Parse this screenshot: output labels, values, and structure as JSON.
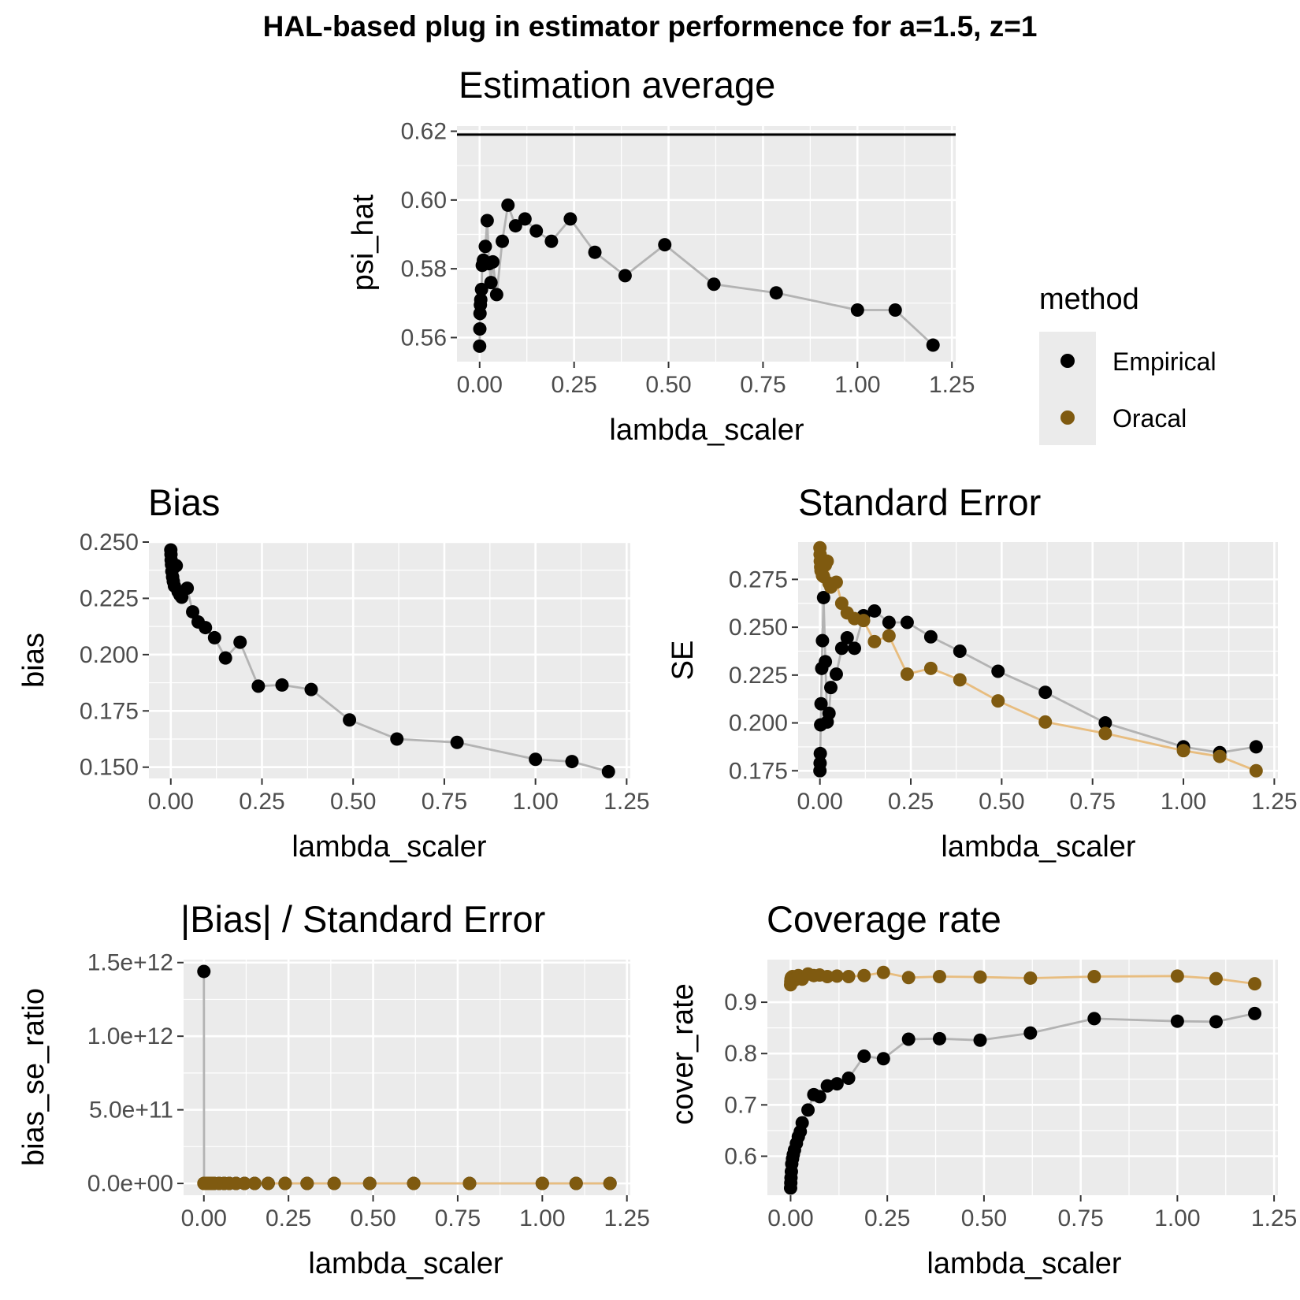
{
  "figure": {
    "title": "HAL-based plug in estimator performence for a=1.5, z=1"
  },
  "legend": {
    "title": "method",
    "items": [
      {
        "label": "Empirical",
        "color": "#000000"
      },
      {
        "label": "Oracal",
        "color": "#7f5a10"
      }
    ]
  },
  "colors": {
    "panel_bg": "#ebebeb",
    "grid": "#ffffff",
    "empirical_point": "#000000",
    "empirical_line": "#b3b3b3",
    "oracal_point": "#7f5a10",
    "oracal_line": "#e8bd7f",
    "reference_line": "#000000"
  },
  "chart_data": [
    {
      "id": "estimation-average",
      "type": "line",
      "title": "Estimation average",
      "xlabel": "lambda_scaler",
      "ylabel": "psi_hat",
      "xlim": [
        -0.06,
        1.26
      ],
      "ylim": [
        0.553,
        0.6215
      ],
      "xticks": [
        0,
        0.25,
        0.5,
        0.75,
        1.0,
        1.25
      ],
      "xtick_labels": [
        "0.00",
        "0.25",
        "0.50",
        "0.75",
        "1.00",
        "1.25"
      ],
      "yticks": [
        0.56,
        0.58,
        0.6,
        0.62
      ],
      "ytick_labels": [
        "0.56",
        "0.58",
        "0.60",
        "0.62"
      ],
      "reference_line": 0.619,
      "series": [
        {
          "name": "Empirical",
          "x": [
            0.0,
            0.0005,
            0.001,
            0.002,
            0.003,
            0.005,
            0.007,
            0.01,
            0.015,
            0.02,
            0.025,
            0.03,
            0.035,
            0.045,
            0.06,
            0.075,
            0.095,
            0.12,
            0.15,
            0.19,
            0.24,
            0.305,
            0.385,
            0.49,
            0.62,
            0.785,
            1.0,
            1.1,
            1.2
          ],
          "y": [
            0.5575,
            0.5625,
            0.567,
            0.5695,
            0.571,
            0.574,
            0.581,
            0.5825,
            0.5865,
            0.594,
            0.5815,
            0.576,
            0.582,
            0.5725,
            0.588,
            0.5985,
            0.5925,
            0.5945,
            0.591,
            0.588,
            0.5945,
            0.5848,
            0.578,
            0.587,
            0.5755,
            0.573,
            0.568,
            0.568,
            0.5578
          ]
        }
      ]
    },
    {
      "id": "bias",
      "type": "line",
      "title": "Bias",
      "xlabel": "lambda_scaler",
      "ylabel": "bias",
      "xlim": [
        -0.06,
        1.26
      ],
      "ylim": [
        0.145,
        0.25
      ],
      "xticks": [
        0,
        0.25,
        0.5,
        0.75,
        1.0,
        1.25
      ],
      "xtick_labels": [
        "0.00",
        "0.25",
        "0.50",
        "0.75",
        "1.00",
        "1.25"
      ],
      "yticks": [
        0.15,
        0.175,
        0.2,
        0.225,
        0.25
      ],
      "ytick_labels": [
        "0.150",
        "0.175",
        "0.200",
        "0.225",
        "0.250"
      ],
      "series": [
        {
          "name": "Empirical",
          "x": [
            0.0,
            0.0005,
            0.001,
            0.002,
            0.003,
            0.005,
            0.007,
            0.01,
            0.015,
            0.02,
            0.025,
            0.03,
            0.045,
            0.06,
            0.075,
            0.095,
            0.12,
            0.15,
            0.19,
            0.24,
            0.305,
            0.385,
            0.49,
            0.62,
            0.785,
            1.0,
            1.1,
            1.2
          ],
          "y": [
            0.2465,
            0.2445,
            0.242,
            0.24,
            0.237,
            0.2345,
            0.2325,
            0.2305,
            0.2395,
            0.228,
            0.2265,
            0.2255,
            0.2295,
            0.219,
            0.2145,
            0.212,
            0.2075,
            0.1985,
            0.2055,
            0.186,
            0.1865,
            0.1845,
            0.171,
            0.1625,
            0.161,
            0.1535,
            0.1525,
            0.148
          ]
        }
      ]
    },
    {
      "id": "standard-error",
      "type": "line",
      "title": "Standard Error",
      "xlabel": "lambda_scaler",
      "ylabel": "SE",
      "xlim": [
        -0.06,
        1.26
      ],
      "ylim": [
        0.171,
        0.2945
      ],
      "xticks": [
        0,
        0.25,
        0.5,
        0.75,
        1.0,
        1.25
      ],
      "xtick_labels": [
        "0.00",
        "0.25",
        "0.50",
        "0.75",
        "1.00",
        "1.25"
      ],
      "yticks": [
        0.175,
        0.2,
        0.225,
        0.25,
        0.275
      ],
      "ytick_labels": [
        "0.175",
        "0.200",
        "0.225",
        "0.250",
        "0.275"
      ],
      "series": [
        {
          "name": "Empirical",
          "x": [
            0.0,
            0.0005,
            0.001,
            0.002,
            0.003,
            0.005,
            0.007,
            0.01,
            0.015,
            0.02,
            0.025,
            0.03,
            0.045,
            0.06,
            0.075,
            0.095,
            0.12,
            0.15,
            0.19,
            0.24,
            0.305,
            0.385,
            0.49,
            0.62,
            0.785,
            1.0,
            1.1,
            1.2
          ],
          "y": [
            0.175,
            0.179,
            0.184,
            0.199,
            0.21,
            0.2285,
            0.243,
            0.2655,
            0.232,
            0.2005,
            0.205,
            0.2185,
            0.2255,
            0.239,
            0.2445,
            0.239,
            0.256,
            0.2585,
            0.2525,
            0.2525,
            0.245,
            0.2375,
            0.227,
            0.216,
            0.2,
            0.1875,
            0.1845,
            0.1875
          ]
        },
        {
          "name": "Oracal",
          "x": [
            0.0,
            0.0005,
            0.001,
            0.002,
            0.003,
            0.005,
            0.007,
            0.01,
            0.015,
            0.02,
            0.025,
            0.03,
            0.045,
            0.06,
            0.075,
            0.095,
            0.12,
            0.15,
            0.19,
            0.24,
            0.305,
            0.385,
            0.49,
            0.62,
            0.785,
            1.0,
            1.1,
            1.2
          ],
          "y": [
            0.2915,
            0.288,
            0.2845,
            0.2815,
            0.2795,
            0.2805,
            0.277,
            0.2765,
            0.2825,
            0.2845,
            0.273,
            0.271,
            0.2735,
            0.2625,
            0.2575,
            0.2545,
            0.2535,
            0.2425,
            0.2455,
            0.2255,
            0.2285,
            0.2225,
            0.2115,
            0.2005,
            0.1945,
            0.1855,
            0.1825,
            0.175
          ]
        }
      ]
    },
    {
      "id": "bias-se-ratio",
      "type": "line",
      "title": "|Bias| / Standard Error",
      "xlabel": "lambda_scaler",
      "ylabel": "bias_se_ratio",
      "xlim": [
        -0.06,
        1.26
      ],
      "ylim": [
        -80000000000,
        1520000000000
      ],
      "xticks": [
        0,
        0.25,
        0.5,
        0.75,
        1.0,
        1.25
      ],
      "xtick_labels": [
        "0.00",
        "0.25",
        "0.50",
        "0.75",
        "1.00",
        "1.25"
      ],
      "yticks": [
        0,
        500000000000,
        1000000000000,
        1500000000000
      ],
      "ytick_labels": [
        "0.0e+00",
        "5.0e+11",
        "1.0e+12",
        "1.5e+12"
      ],
      "series": [
        {
          "name": "Empirical",
          "x": [
            0.0,
            0.0005,
            0.001,
            0.002,
            0.003,
            0.005,
            0.007,
            0.01,
            0.015,
            0.02,
            0.025,
            0.03,
            0.045,
            0.06,
            0.075,
            0.095,
            0.12,
            0.15,
            0.19,
            0.24,
            0.305,
            0.385,
            0.49,
            0.62,
            0.785,
            1.0,
            1.1,
            1.2
          ],
          "y": [
            1440000000000,
            1.1,
            1.2,
            1.2,
            1.2,
            1.0,
            1.0,
            0.9,
            1.0,
            1.1,
            1.1,
            1.0,
            1.0,
            0.9,
            0.9,
            0.9,
            0.8,
            0.8,
            0.8,
            0.7,
            0.8,
            0.8,
            0.8,
            0.8,
            0.8,
            0.8,
            0.8,
            0.8
          ]
        },
        {
          "name": "Oracal",
          "x": [
            0.0,
            0.0005,
            0.001,
            0.002,
            0.003,
            0.005,
            0.007,
            0.01,
            0.015,
            0.02,
            0.025,
            0.03,
            0.045,
            0.06,
            0.075,
            0.095,
            0.12,
            0.15,
            0.19,
            0.24,
            0.305,
            0.385,
            0.49,
            0.62,
            0.785,
            1.0,
            1.1,
            1.2
          ],
          "y": [
            0.85,
            0.85,
            0.85,
            0.85,
            0.85,
            0.84,
            0.84,
            0.83,
            0.85,
            0.8,
            0.83,
            0.83,
            0.84,
            0.83,
            0.83,
            0.83,
            0.82,
            0.82,
            0.84,
            0.82,
            0.82,
            0.83,
            0.81,
            0.81,
            0.83,
            0.83,
            0.84,
            0.85
          ]
        }
      ]
    },
    {
      "id": "coverage-rate",
      "type": "line",
      "title": "Coverage rate",
      "xlabel": "lambda_scaler",
      "ylabel": "cover_rate",
      "xlim": [
        -0.06,
        1.26
      ],
      "ylim": [
        0.524,
        0.983
      ],
      "xticks": [
        0,
        0.25,
        0.5,
        0.75,
        1.0,
        1.25
      ],
      "xtick_labels": [
        "0.00",
        "0.25",
        "0.50",
        "0.75",
        "1.00",
        "1.25"
      ],
      "yticks": [
        0.6,
        0.7,
        0.8,
        0.9
      ],
      "ytick_labels": [
        "0.6",
        "0.7",
        "0.8",
        "0.9"
      ],
      "series": [
        {
          "name": "Empirical",
          "x": [
            0.0,
            0.0005,
            0.001,
            0.002,
            0.003,
            0.005,
            0.007,
            0.01,
            0.015,
            0.02,
            0.025,
            0.03,
            0.045,
            0.06,
            0.075,
            0.095,
            0.12,
            0.15,
            0.19,
            0.24,
            0.305,
            0.385,
            0.49,
            0.62,
            0.785,
            1.0,
            1.1,
            1.2
          ],
          "y": [
            0.538,
            0.548,
            0.558,
            0.57,
            0.585,
            0.595,
            0.603,
            0.612,
            0.625,
            0.638,
            0.648,
            0.665,
            0.69,
            0.72,
            0.716,
            0.737,
            0.741,
            0.752,
            0.795,
            0.79,
            0.828,
            0.829,
            0.826,
            0.84,
            0.868,
            0.863,
            0.862,
            0.878
          ]
        },
        {
          "name": "Oracal",
          "x": [
            0.0,
            0.0005,
            0.001,
            0.002,
            0.003,
            0.005,
            0.007,
            0.01,
            0.015,
            0.02,
            0.025,
            0.03,
            0.045,
            0.06,
            0.075,
            0.095,
            0.12,
            0.15,
            0.19,
            0.24,
            0.305,
            0.385,
            0.49,
            0.62,
            0.785,
            1.0,
            1.1,
            1.2
          ],
          "y": [
            0.934,
            0.94,
            0.945,
            0.948,
            0.946,
            0.95,
            0.944,
            0.943,
            0.947,
            0.952,
            0.95,
            0.945,
            0.955,
            0.952,
            0.953,
            0.95,
            0.951,
            0.95,
            0.952,
            0.958,
            0.948,
            0.95,
            0.949,
            0.947,
            0.95,
            0.951,
            0.946,
            0.936
          ]
        }
      ]
    }
  ]
}
